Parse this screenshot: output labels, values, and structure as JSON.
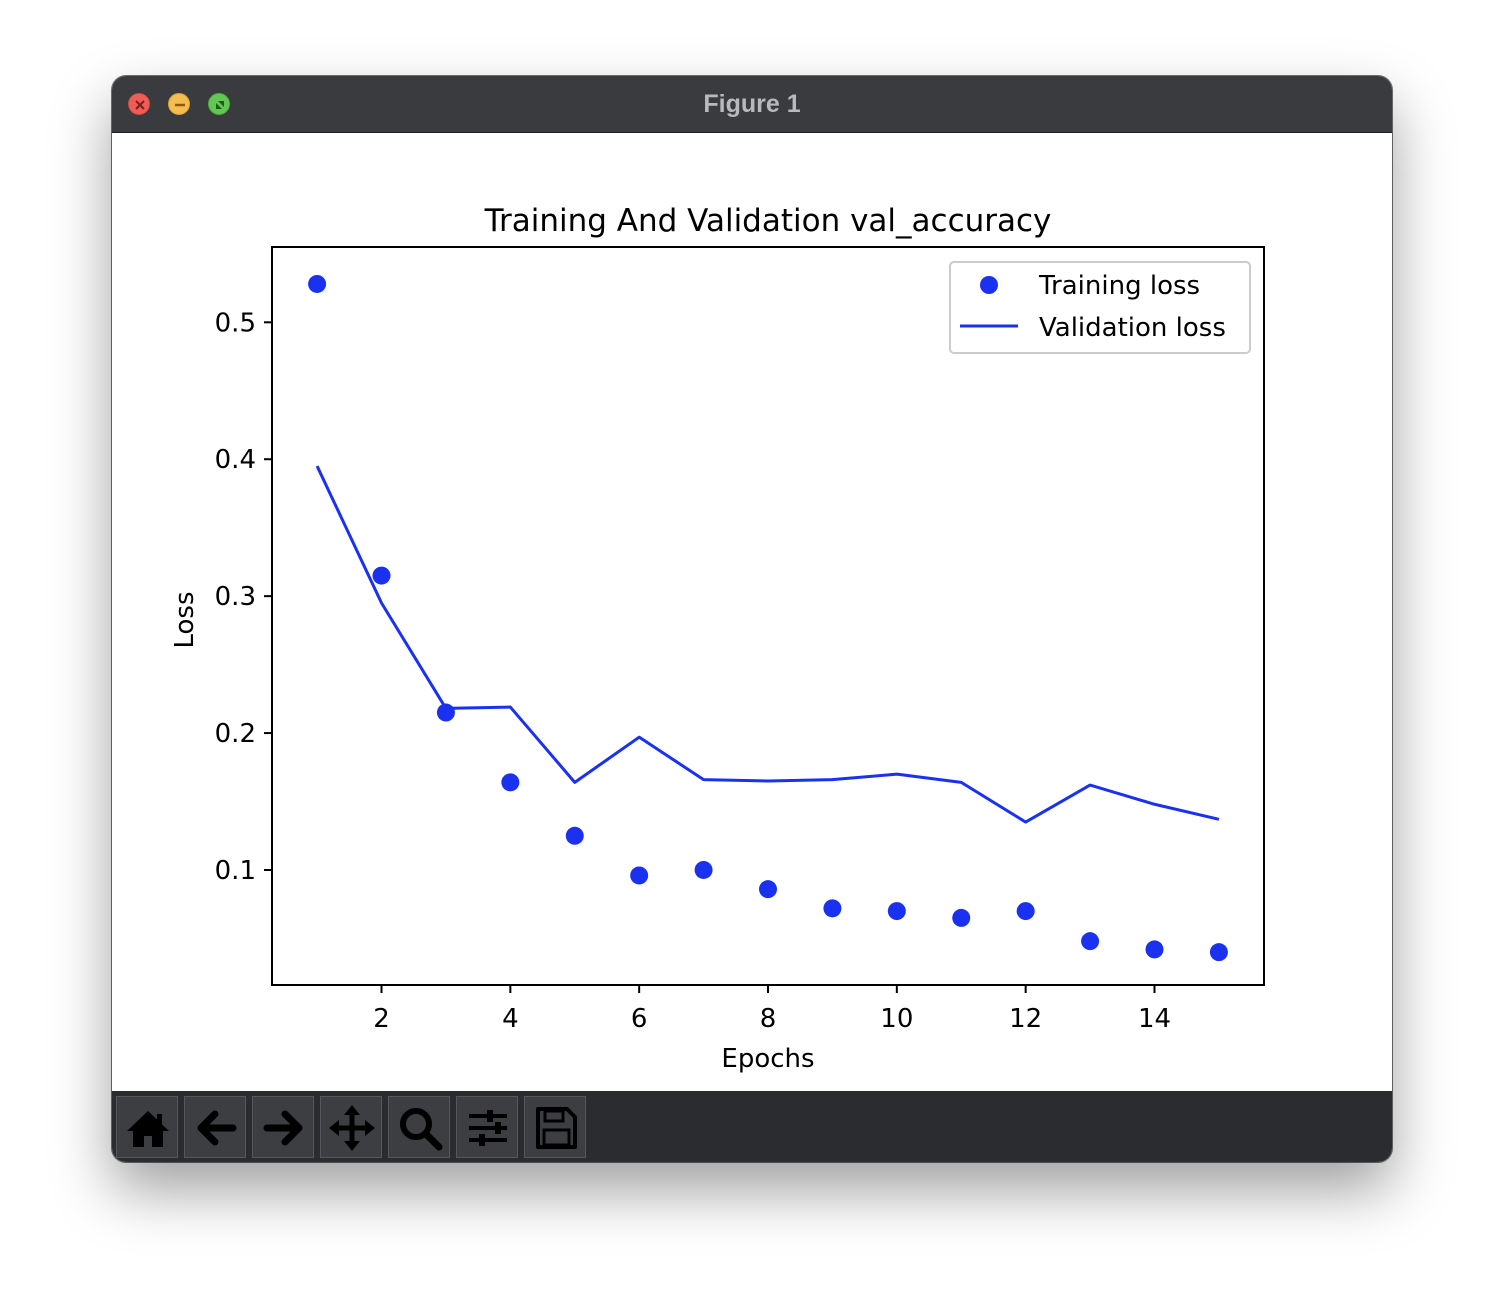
{
  "window": {
    "title": "Figure 1"
  },
  "toolbar": {
    "buttons": [
      {
        "name": "home-button",
        "icon": "home-icon"
      },
      {
        "name": "back-button",
        "icon": "arrow-left-icon"
      },
      {
        "name": "forward-button",
        "icon": "arrow-right-icon"
      },
      {
        "name": "pan-button",
        "icon": "move-icon"
      },
      {
        "name": "zoom-button",
        "icon": "magnifier-icon"
      },
      {
        "name": "configure-subplots-button",
        "icon": "sliders-icon"
      },
      {
        "name": "save-button",
        "icon": "floppy-disk-icon"
      }
    ]
  },
  "colors": {
    "series": "#1a32f0",
    "titlebar": "#3a3b3f",
    "toolbar": "#2a2c30"
  },
  "chart_data": {
    "type": "scatter",
    "title": "Training And Validation val_accuracy",
    "xlabel": "Epochs",
    "ylabel": "Loss",
    "xlim": [
      0.3,
      15.7
    ],
    "ylim": [
      0.016,
      0.555
    ],
    "xticks": [
      2,
      4,
      6,
      8,
      10,
      12,
      14
    ],
    "xtick_labels": [
      "2",
      "4",
      "6",
      "8",
      "10",
      "12",
      "14"
    ],
    "yticks": [
      0.1,
      0.2,
      0.3,
      0.4,
      0.5
    ],
    "ytick_labels": [
      "0.1",
      "0.2",
      "0.3",
      "0.4",
      "0.5"
    ],
    "grid": false,
    "legend_position": "top-right",
    "x": [
      1,
      2,
      3,
      4,
      5,
      6,
      7,
      8,
      9,
      10,
      11,
      12,
      13,
      14,
      15
    ],
    "series": [
      {
        "name": "Training loss",
        "style": "markers",
        "values": [
          0.528,
          0.315,
          0.215,
          0.164,
          0.125,
          0.096,
          0.1,
          0.086,
          0.072,
          0.07,
          0.065,
          0.07,
          0.048,
          0.042,
          0.04
        ]
      },
      {
        "name": "Validation loss",
        "style": "line",
        "values": [
          0.395,
          0.295,
          0.218,
          0.219,
          0.164,
          0.197,
          0.166,
          0.165,
          0.166,
          0.17,
          0.164,
          0.135,
          0.162,
          0.148,
          0.137
        ]
      }
    ]
  }
}
